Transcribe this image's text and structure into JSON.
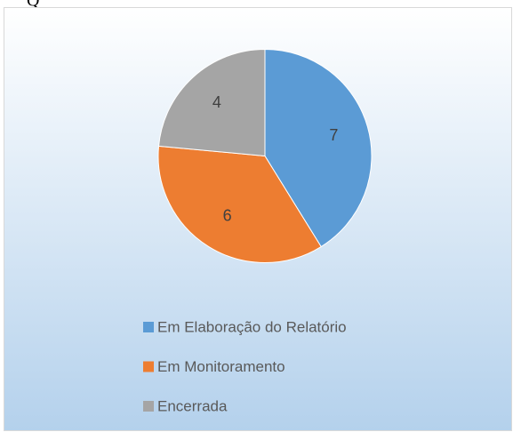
{
  "caption_fragment": "Q",
  "chart_data": {
    "type": "pie",
    "categories": [
      "Em Elaboração do Relatório",
      "Em Monitoramento",
      "Encerrada"
    ],
    "values": [
      7,
      6,
      4
    ],
    "colors": [
      "#5b9bd5",
      "#ed7d31",
      "#a5a5a5"
    ]
  }
}
